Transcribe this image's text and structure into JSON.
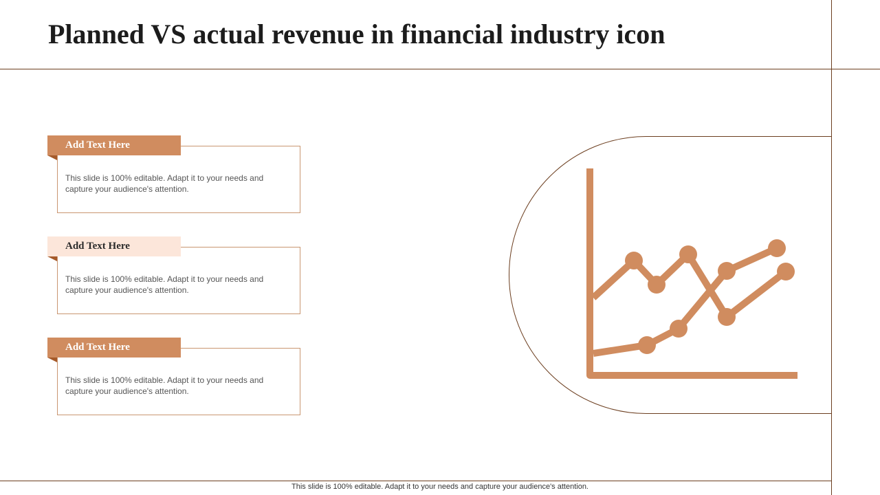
{
  "header": {
    "title": "Planned VS actual revenue in financial industry icon"
  },
  "cards": [
    {
      "heading": "Add Text Here",
      "body": "This slide is 100% editable. Adapt it to your needs and capture your audience's attention.",
      "tab_style": "dark"
    },
    {
      "heading": "Add Text Here",
      "body": "This slide is 100% editable. Adapt it to your needs and capture your audience's attention.",
      "tab_style": "light"
    },
    {
      "heading": "Add Text Here",
      "body": "This slide is 100% editable. Adapt it to your needs and capture your audience's attention.",
      "tab_style": "dark"
    }
  ],
  "footer": {
    "note": "This slide is 100% editable. Adapt it to your needs and capture your audience's attention."
  },
  "icon": {
    "name": "line-chart-icon",
    "color": "#d08c5f",
    "outline_color": "#6b3d1e"
  },
  "colors": {
    "accent": "#d08c5f",
    "accent_light": "#fce6da",
    "fold": "#a55a2a",
    "rule": "#6b3d1e",
    "card_border": "#c99570"
  }
}
